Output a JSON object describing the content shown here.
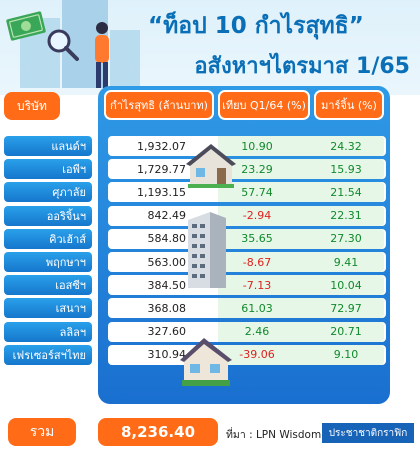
{
  "header": {
    "title_line1": "“ท็อป 10 กำไรสุทธิ”",
    "title_line2": "อสังหาฯไตรมาส 1/65"
  },
  "table": {
    "headers": {
      "company": "บริษัท",
      "profit": "กำไรสุทธิ (ล้านบาท)",
      "yoy": "เทียบ Q1/64 (%)",
      "margin": "มาร์จิ้น (%)"
    },
    "rows": [
      {
        "company": "แลนด์ฯ",
        "profit": "1,932.07",
        "yoy": "10.90",
        "margin": "24.32",
        "yoy_negative": false
      },
      {
        "company": "เอพีฯ",
        "profit": "1,729.77",
        "yoy": "23.29",
        "margin": "15.93",
        "yoy_negative": false
      },
      {
        "company": "ศุภาลัย",
        "profit": "1,193.15",
        "yoy": "57.74",
        "margin": "21.54",
        "yoy_negative": false
      },
      {
        "company": "ออริจิ้นฯ",
        "profit": "842.49",
        "yoy": "-2.94",
        "margin": "22.31",
        "yoy_negative": true
      },
      {
        "company": "คิวเฮ้าส์",
        "profit": "584.80",
        "yoy": "35.65",
        "margin": "27.30",
        "yoy_negative": false
      },
      {
        "company": "พฤกษาฯ",
        "profit": "563.00",
        "yoy": "-8.67",
        "margin": "9.41",
        "yoy_negative": true
      },
      {
        "company": "เอสซีฯ",
        "profit": "384.50",
        "yoy": "-7.13",
        "margin": "10.04",
        "yoy_negative": true
      },
      {
        "company": "เสนาฯ",
        "profit": "368.08",
        "yoy": "61.03",
        "margin": "72.97",
        "yoy_negative": false
      },
      {
        "company": "ลลิลฯ",
        "profit": "327.60",
        "yoy": "2.46",
        "margin": "20.71",
        "yoy_negative": false
      },
      {
        "company": "เฟรเซอร์สฯไทย",
        "profit": "310.94",
        "yoy": "-39.06",
        "margin": "9.10",
        "yoy_negative": true
      }
    ]
  },
  "footer": {
    "total_label": "รวม",
    "total_value": "8,236.40",
    "source": "ที่มา : LPN Wisdom",
    "brand": "ประชาชาติกราฟิก"
  },
  "colors": {
    "accent": "#ff6b17",
    "primary": "#0a6fb6",
    "positive": "#118a2c",
    "negative": "#e0201b"
  },
  "icons": [
    "money-icon",
    "magnifier-icon",
    "house-icon",
    "condo-building-icon"
  ]
}
